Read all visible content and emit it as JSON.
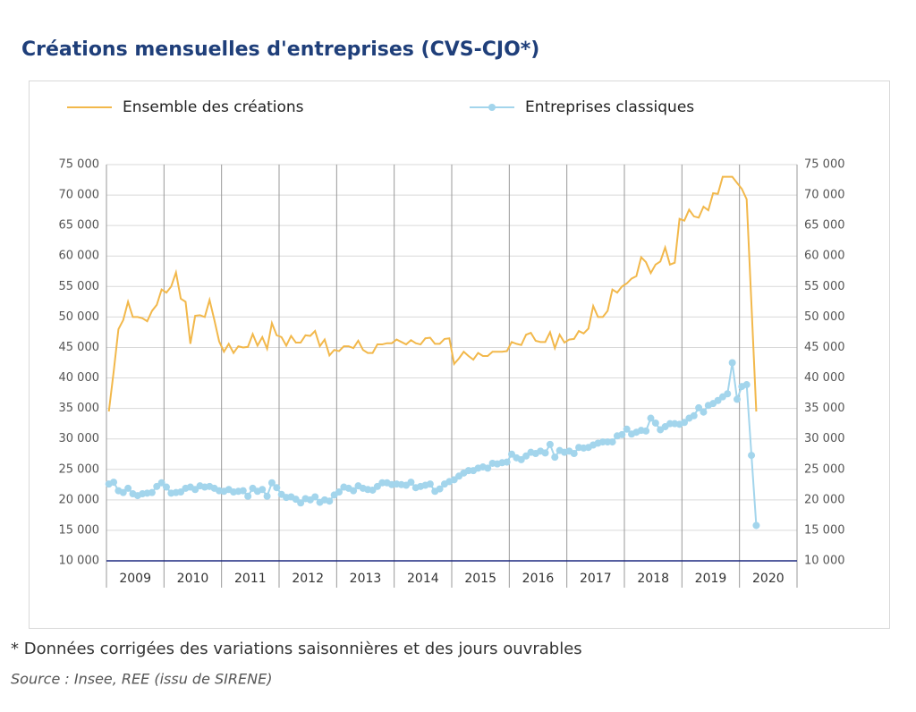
{
  "chart_data": {
    "type": "line",
    "title": "Créations mensuelles d'entreprises (CVS-CJO*)",
    "footnote": "* Données corrigées des variations saisonnières et des jours ouvrables",
    "source": "Source : Insee, REE (issu de SIRENE)",
    "categories": [
      "2009",
      null,
      null,
      null,
      null,
      null,
      null,
      null,
      null,
      null,
      null,
      null,
      "2010",
      null,
      null,
      null,
      null,
      null,
      null,
      null,
      null,
      null,
      null,
      null,
      "2011",
      null,
      null,
      null,
      null,
      null,
      null,
      null,
      null,
      null,
      null,
      null,
      "2012",
      null,
      null,
      null,
      null,
      null,
      null,
      null,
      null,
      null,
      null,
      null,
      "2013",
      null,
      null,
      null,
      null,
      null,
      null,
      null,
      null,
      null,
      null,
      null,
      "2014",
      null,
      null,
      null,
      null,
      null,
      null,
      null,
      null,
      null,
      null,
      null,
      "2015",
      null,
      null,
      null,
      null,
      null,
      null,
      null,
      null,
      null,
      null,
      null,
      "2016",
      null,
      null,
      null,
      null,
      null,
      null,
      null,
      null,
      null,
      null,
      null,
      "2017",
      null,
      null,
      null,
      null,
      null,
      null,
      null,
      null,
      null,
      null,
      null,
      "2018",
      null,
      null,
      null,
      null,
      null,
      null,
      null,
      null,
      null,
      null,
      null,
      "2019",
      null,
      null,
      null,
      null,
      null,
      null,
      null,
      null,
      null,
      null,
      null,
      "2020",
      null,
      null,
      null,
      null,
      null,
      null,
      null,
      null,
      null,
      null,
      null
    ],
    "series": [
      {
        "name": "Ensemble des créations",
        "color": "#f2b84b",
        "markers": false,
        "values": [
          34500,
          41000,
          48000,
          49500,
          52500,
          50000,
          50000,
          49800,
          49300,
          51000,
          52000,
          54500,
          54000,
          55000,
          57300,
          53000,
          52500,
          45600,
          50200,
          50300,
          50000,
          52800,
          49500,
          46000,
          44300,
          45600,
          44100,
          45200,
          45000,
          45100,
          47200,
          45300,
          46700,
          44800,
          49000,
          47000,
          46700,
          45300,
          46900,
          45800,
          45800,
          47000,
          46900,
          47700,
          45200,
          46300,
          43700,
          44600,
          44400,
          45200,
          45200,
          44900,
          46100,
          44600,
          44100,
          44100,
          45500,
          45500,
          45700,
          45700,
          46300,
          45900,
          45500,
          46200,
          45700,
          45500,
          46500,
          46600,
          45600,
          45600,
          46400,
          46500,
          42300,
          43200,
          44300,
          43600,
          43000,
          44100,
          43600,
          43600,
          44300,
          44300,
          44300,
          44400,
          45900,
          45600,
          45400,
          47100,
          47400,
          46100,
          45900,
          45900,
          47500,
          44900,
          47100,
          45800,
          46300,
          46400,
          47700,
          47300,
          48100,
          51800,
          50000,
          50000,
          51000,
          54500,
          54000,
          55000,
          55500,
          56300,
          56700,
          59800,
          59000,
          57200,
          58600,
          59100,
          61400,
          58600,
          58900,
          66100,
          65800,
          67600,
          66500,
          66300,
          68100,
          67500,
          70300,
          70200,
          73000,
          73000,
          73000,
          72000,
          71000,
          69300,
          52000,
          34500,
          null,
          null,
          null,
          null,
          null,
          null,
          null,
          null
        ]
      },
      {
        "name": "Entreprises classiques",
        "color": "#a3d5ec",
        "markers": true,
        "values": [
          22600,
          22900,
          21500,
          21200,
          21900,
          21000,
          20700,
          21000,
          21100,
          21200,
          22200,
          22800,
          22100,
          21100,
          21200,
          21300,
          21900,
          22100,
          21700,
          22300,
          22100,
          22200,
          21900,
          21500,
          21400,
          21700,
          21300,
          21400,
          21500,
          20600,
          21900,
          21400,
          21700,
          20600,
          22800,
          22000,
          20900,
          20400,
          20500,
          20100,
          19500,
          20200,
          20000,
          20500,
          19600,
          20000,
          19800,
          20800,
          21300,
          22100,
          21900,
          21500,
          22300,
          21900,
          21700,
          21600,
          22200,
          22800,
          22800,
          22500,
          22600,
          22500,
          22400,
          22900,
          22000,
          22200,
          22400,
          22600,
          21400,
          21800,
          22600,
          23000,
          23300,
          23900,
          24400,
          24800,
          24800,
          25200,
          25400,
          25200,
          26000,
          25900,
          26100,
          26200,
          27500,
          26900,
          26600,
          27200,
          27800,
          27600,
          28000,
          27700,
          29100,
          27000,
          28100,
          27800,
          28000,
          27600,
          28600,
          28500,
          28600,
          29000,
          29300,
          29500,
          29500,
          29500,
          30500,
          30700,
          31600,
          30800,
          31100,
          31400,
          31300,
          33400,
          32600,
          31500,
          32000,
          32500,
          32500,
          32400,
          32700,
          33400,
          33800,
          35100,
          34400,
          35500,
          35800,
          36300,
          36900,
          37400,
          42500,
          36500,
          38600,
          38900,
          27300,
          15800,
          null,
          null,
          null,
          null,
          null,
          null,
          null,
          null
        ]
      }
    ],
    "ylim": [
      10000,
      75000
    ],
    "yticks": [
      {
        "value": 10000,
        "label": "10 000"
      },
      {
        "value": 15000,
        "label": "15 000"
      },
      {
        "value": 20000,
        "label": "20 000"
      },
      {
        "value": 25000,
        "label": "25 000"
      },
      {
        "value": 30000,
        "label": "30 000"
      },
      {
        "value": 35000,
        "label": "35 000"
      },
      {
        "value": 40000,
        "label": "40 000"
      },
      {
        "value": 45000,
        "label": "45 000"
      },
      {
        "value": 50000,
        "label": "50 000"
      },
      {
        "value": 55000,
        "label": "55 000"
      },
      {
        "value": 60000,
        "label": "60 000"
      },
      {
        "value": 65000,
        "label": "65 000"
      },
      {
        "value": 70000,
        "label": "70 000"
      },
      {
        "value": 75000,
        "label": "75 000"
      }
    ],
    "grid": true,
    "legend": "top"
  }
}
